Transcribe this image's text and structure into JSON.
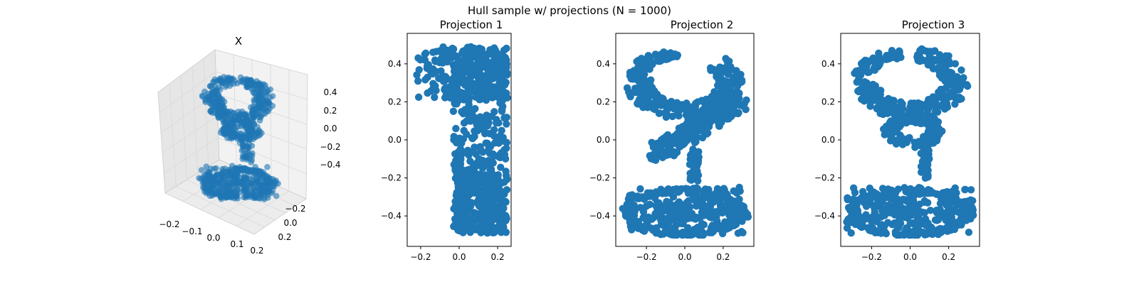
{
  "figure": {
    "suptitle": "Hull sample w/ projections (N = 1000)"
  },
  "colors": {
    "marker": "#1f77b4",
    "axis": "#000000",
    "pane_left": "#e6e6e6",
    "pane_right": "#f2f2f2",
    "pane_floor": "#ececec",
    "grid": "#d9d9d9"
  },
  "chart_data": [
    {
      "type": "scatter",
      "projection": "3d",
      "title": "X",
      "points": 1000,
      "xlim": [
        -0.3,
        0.3
      ],
      "ylim": [
        -0.35,
        0.35
      ],
      "zlim": [
        -0.5,
        0.5
      ],
      "x_ticks": [
        "−0.2",
        "−0.1",
        "0.0",
        "0.1",
        "0.2"
      ],
      "y_ticks": [
        "−0.2",
        "0.0",
        "0.2"
      ],
      "z_ticks": [
        "0.4",
        "0.2",
        "0.0",
        "−0.2",
        "−0.4"
      ],
      "grid": true,
      "marker_alpha": 0.6
    },
    {
      "type": "scatter",
      "title": "Projection 1",
      "shape": "1",
      "points": 1000,
      "xlim": [
        -0.27,
        0.27
      ],
      "ylim": [
        -0.56,
        0.56
      ],
      "x_ticks": [
        -0.2,
        0.0,
        0.2
      ],
      "y_ticks": [
        0.4,
        0.2,
        0.0,
        -0.2,
        -0.4
      ],
      "grid": false
    },
    {
      "type": "scatter",
      "title": "Projection 2",
      "shape": "2",
      "points": 1000,
      "xlim": [
        -0.36,
        0.36
      ],
      "ylim": [
        -0.56,
        0.56
      ],
      "x_ticks": [
        -0.2,
        0.0,
        0.2
      ],
      "y_ticks": [
        0.4,
        0.2,
        0.0,
        -0.2,
        -0.4
      ],
      "grid": false
    },
    {
      "type": "scatter",
      "title": "Projection 3",
      "shape": "3",
      "points": 1000,
      "xlim": [
        -0.36,
        0.36
      ],
      "ylim": [
        -0.56,
        0.56
      ],
      "x_ticks": [
        -0.2,
        0.0,
        0.2
      ],
      "y_ticks": [
        0.4,
        0.2,
        0.0,
        -0.2,
        -0.4
      ],
      "grid": false
    }
  ]
}
